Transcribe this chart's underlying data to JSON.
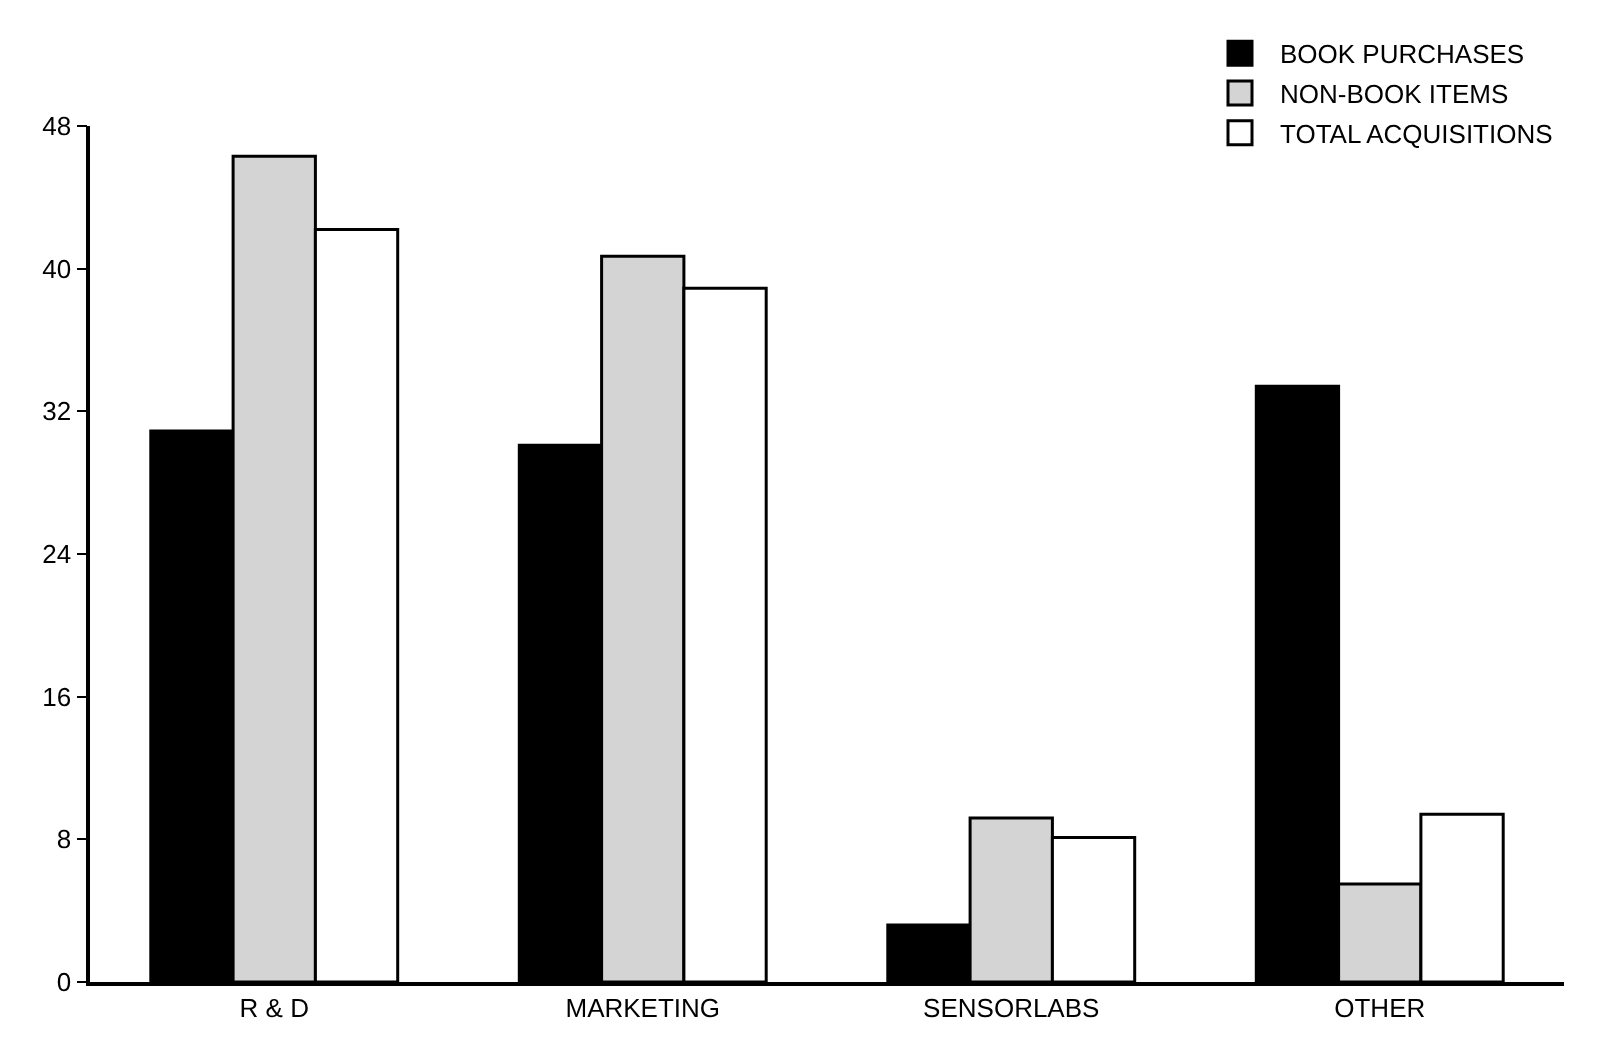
{
  "chart_data": {
    "type": "bar",
    "categories": [
      "R & D",
      "MARKETING",
      "SENSORLABS",
      "OTHER"
    ],
    "series": [
      {
        "name": "BOOK PURCHASES",
        "color": "#000000",
        "values": [
          30.9,
          30.1,
          3.2,
          33.4
        ]
      },
      {
        "name": "NON-BOOK ITEMS",
        "color": "#d4d4d4",
        "values": [
          46.3,
          40.7,
          9.2,
          5.5
        ]
      },
      {
        "name": "TOTAL ACQUISITIONS",
        "color": "#ffffff",
        "values": [
          42.2,
          38.9,
          8.1,
          9.4
        ]
      }
    ],
    "ylim": [
      0,
      48
    ],
    "yticks": [
      0,
      8,
      16,
      24,
      32,
      40,
      48
    ],
    "legend": "top right"
  }
}
